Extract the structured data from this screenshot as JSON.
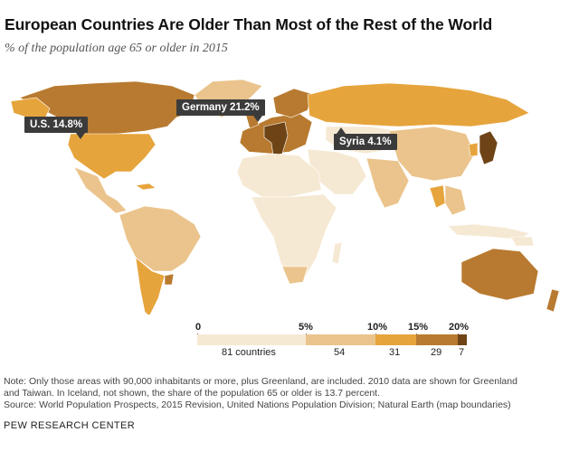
{
  "title": "European Countries Are Older Than Most of the Rest of the World",
  "subtitle": "% of the population age 65 or older in 2015",
  "callouts": {
    "us": "U.S. 14.8%",
    "germany": "Germany 21.2%",
    "syria": "Syria 4.1%"
  },
  "legend": {
    "ticks": [
      "0",
      "5%",
      "10%",
      "15%",
      "20%"
    ],
    "bins": [
      {
        "range": "0-5%",
        "count": "81 countries",
        "color": "#f6e9d3"
      },
      {
        "range": "5-10%",
        "count": "54",
        "color": "#eac48c"
      },
      {
        "range": "10-15%",
        "count": "31",
        "color": "#e6a43c"
      },
      {
        "range": "15-20%",
        "count": "29",
        "color": "#b87a30"
      },
      {
        "range": "20%+",
        "count": "7",
        "color": "#6e4417"
      }
    ]
  },
  "notes": {
    "line1": "Note: Only those areas with 90,000 inhabitants or more, plus Greenland, are included. 2010 data are shown for Greenland",
    "line2": "and Taiwan. In Iceland, not shown, the share of the population 65 or older is 13.7 percent.",
    "line3": "Source: World Population Prospects, 2015 Revision, United Nations Population Division; Natural Earth (map boundaries)"
  },
  "brand": "PEW RESEARCH CENTER",
  "colors": {
    "c0": "#f6e9d3",
    "c1": "#eac48c",
    "c2": "#e6a43c",
    "c3": "#b87a30",
    "c4": "#6e4417",
    "callout_bg": "#3b3b3b"
  }
}
